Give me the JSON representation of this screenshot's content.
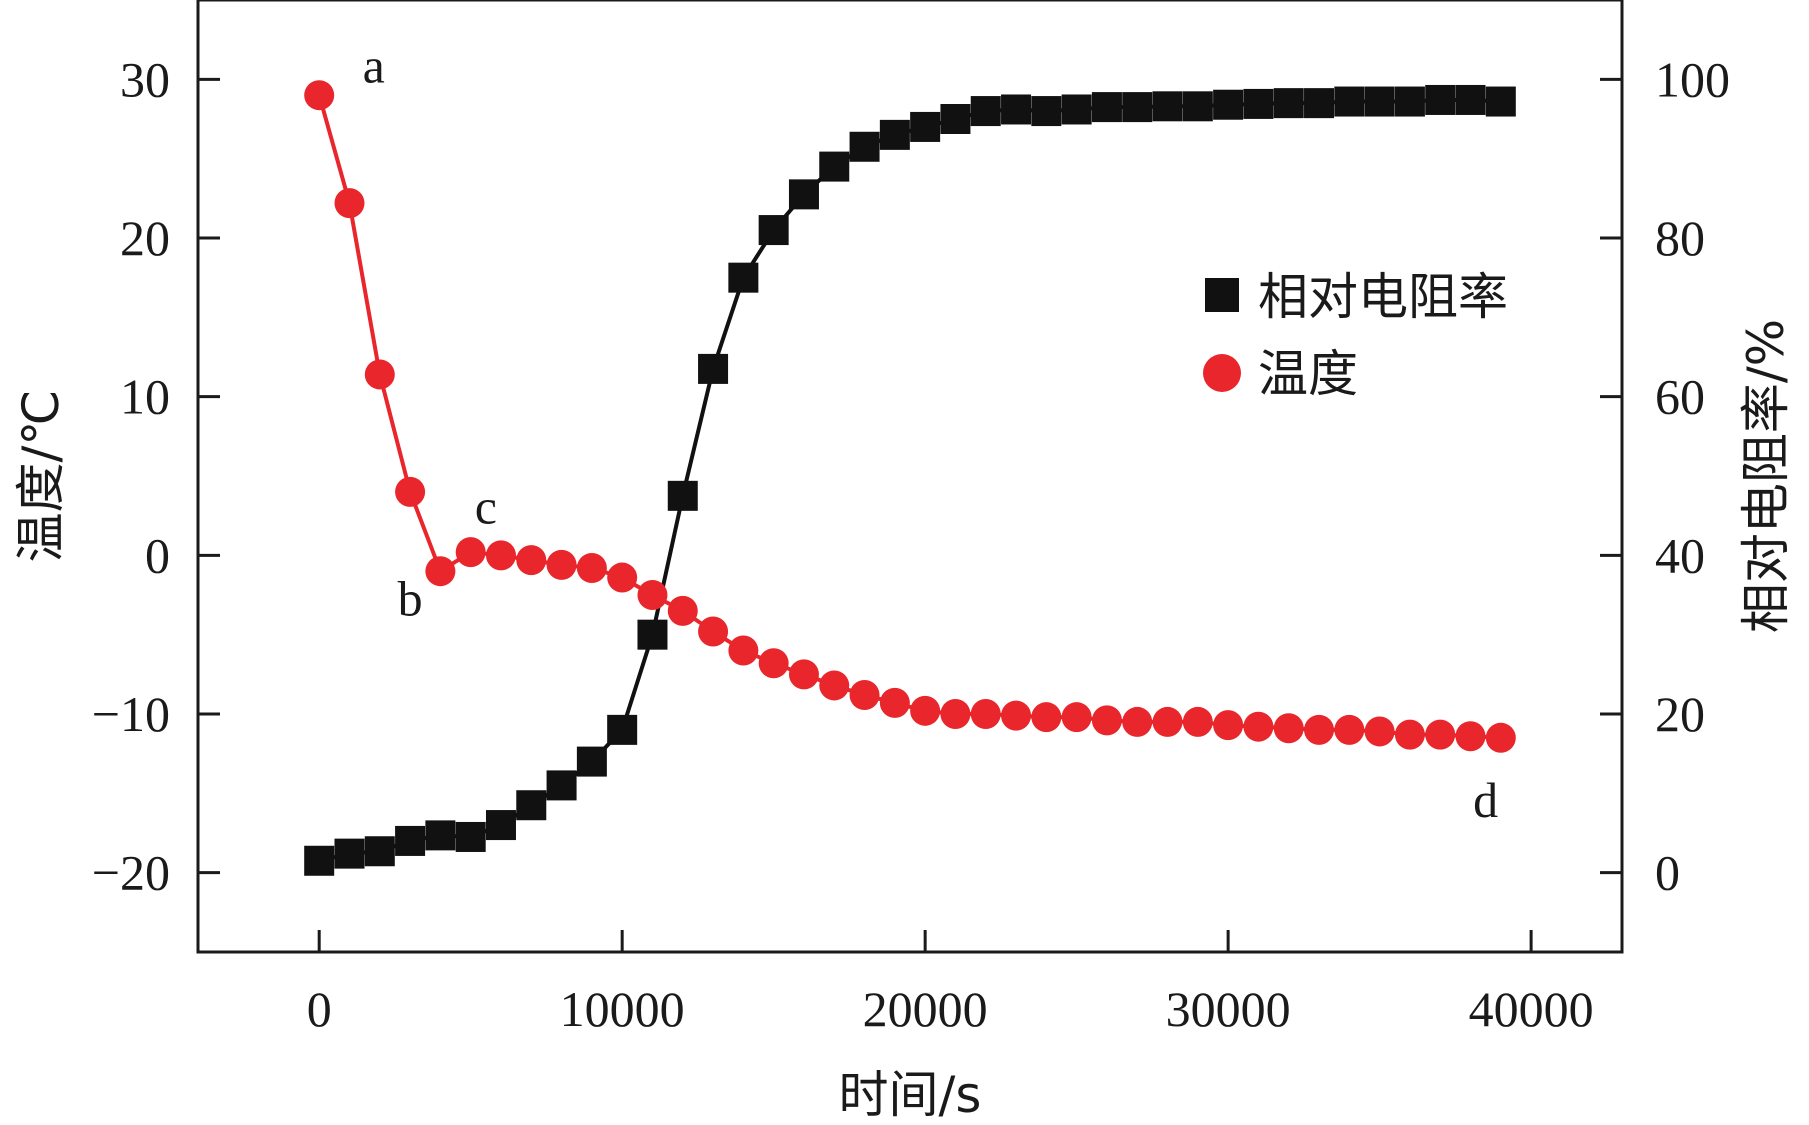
{
  "chart_data": {
    "type": "line",
    "title": "",
    "xlabel": "时间/s",
    "ylabel_left": "温度/℃",
    "ylabel_right": "相对电阻率/%",
    "xlim": [
      -4000,
      43000
    ],
    "ylim_left": [
      -25,
      35
    ],
    "ylim_right": [
      -10,
      110
    ],
    "xticks": [
      0,
      10000,
      20000,
      30000,
      40000
    ],
    "yticks_left": [
      -20,
      -10,
      0,
      10,
      20,
      30
    ],
    "yticks_right": [
      0,
      20,
      40,
      60,
      80,
      100
    ],
    "xtick_labels": [
      "0",
      "10000",
      "20000",
      "30000",
      "40000"
    ],
    "ytick_labels_left": [
      "−20",
      "−10",
      "0",
      "10",
      "20",
      "30"
    ],
    "ytick_labels_right": [
      "0",
      "20",
      "40",
      "60",
      "80",
      "100"
    ],
    "grid": false,
    "legend_position": "upper-right",
    "legend": [
      "相对电阻率",
      "温度"
    ],
    "series": [
      {
        "name": "相对电阻率",
        "axis": "right",
        "marker": "square",
        "color": "#111111",
        "x": [
          0,
          1000,
          2000,
          3000,
          4000,
          5000,
          6000,
          7000,
          8000,
          9000,
          10000,
          11000,
          12000,
          13000,
          14000,
          15000,
          16000,
          17000,
          18000,
          19000,
          20000,
          21000,
          22000,
          23000,
          24000,
          25000,
          26000,
          27000,
          28000,
          29000,
          30000,
          31000,
          32000,
          33000,
          34000,
          35000,
          36000,
          37000,
          38000,
          39000
        ],
        "y": [
          1.5,
          2.4,
          2.7,
          4.0,
          4.7,
          4.5,
          6.0,
          8.5,
          11.0,
          14.0,
          18.0,
          30.0,
          47.5,
          63.5,
          75.0,
          81.0,
          85.5,
          89.0,
          91.5,
          93.0,
          94.0,
          95.0,
          96.0,
          96.2,
          96.0,
          96.2,
          96.5,
          96.5,
          96.6,
          96.6,
          96.8,
          96.9,
          97.0,
          97.0,
          97.2,
          97.2,
          97.2,
          97.4,
          97.4,
          97.2
        ]
      },
      {
        "name": "温度",
        "axis": "left",
        "marker": "circle",
        "color": "#e8262b",
        "x": [
          0,
          1000,
          2000,
          3000,
          4000,
          5000,
          6000,
          7000,
          8000,
          9000,
          10000,
          11000,
          12000,
          13000,
          14000,
          15000,
          16000,
          17000,
          18000,
          19000,
          20000,
          21000,
          22000,
          23000,
          24000,
          25000,
          26000,
          27000,
          28000,
          29000,
          30000,
          31000,
          32000,
          33000,
          34000,
          35000,
          36000,
          37000,
          38000,
          39000
        ],
        "y": [
          29.0,
          22.2,
          11.4,
          4.0,
          -1.0,
          0.2,
          0.0,
          -0.3,
          -0.6,
          -0.8,
          -1.4,
          -2.5,
          -3.5,
          -4.8,
          -6.0,
          -6.8,
          -7.5,
          -8.2,
          -8.8,
          -9.3,
          -9.8,
          -10.0,
          -10.0,
          -10.1,
          -10.2,
          -10.2,
          -10.4,
          -10.5,
          -10.5,
          -10.5,
          -10.7,
          -10.8,
          -10.9,
          -11.0,
          -11.0,
          -11.1,
          -11.3,
          -11.3,
          -11.4,
          -11.5
        ]
      }
    ],
    "annotations": [
      {
        "text": "a",
        "x": 1800,
        "y": 29.8
      },
      {
        "text": "b",
        "x": 3000,
        "y": -3.8
      },
      {
        "text": "c",
        "x": 5500,
        "y": 2.0
      },
      {
        "text": "d",
        "x": 38500,
        "y": -16.5
      }
    ]
  }
}
